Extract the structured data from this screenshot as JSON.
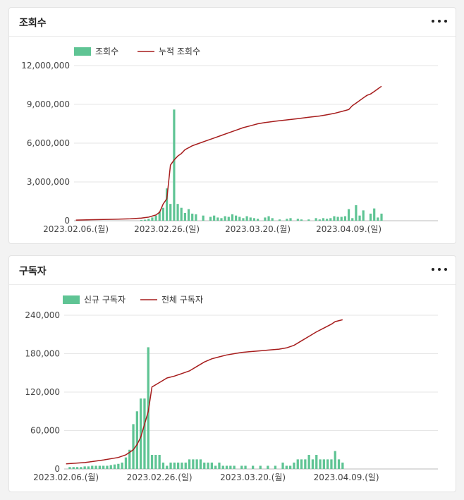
{
  "colors": {
    "bar": "#5fc494",
    "line": "#a61c1c",
    "grid": "#e6e6e6"
  },
  "cards": [
    {
      "title": "조회수"
    },
    {
      "title": "구독자"
    }
  ],
  "chart_data": [
    {
      "type": "bar",
      "x_range": [
        0,
        99
      ],
      "ylim": [
        0,
        12000000
      ],
      "yticks": [
        0,
        3000000,
        6000000,
        9000000,
        12000000
      ],
      "ytick_labels": [
        "0",
        "3,000,000",
        "6,000,000",
        "9,000,000",
        "12,000,000"
      ],
      "xticks": [
        0,
        25,
        50,
        75
      ],
      "xtick_labels": [
        "2023.02.06.(월)",
        "2023.02.26.(일)",
        "2023.03.20.(월)",
        "2023.04.09.(일)"
      ],
      "legend": "top-left",
      "grid": true,
      "series": [
        {
          "name": "조회수",
          "kind": "bar",
          "points": [
            [
              18,
              50000
            ],
            [
              19,
              80000
            ],
            [
              20,
              150000
            ],
            [
              21,
              250000
            ],
            [
              22,
              400000
            ],
            [
              23,
              700000
            ],
            [
              24,
              1000000
            ],
            [
              25,
              2500000
            ],
            [
              26,
              1300000
            ],
            [
              27,
              8600000
            ],
            [
              28,
              1300000
            ],
            [
              29,
              1000000
            ],
            [
              30,
              600000
            ],
            [
              31,
              900000
            ],
            [
              32,
              550000
            ],
            [
              33,
              500000
            ],
            [
              35,
              400000
            ],
            [
              37,
              300000
            ],
            [
              38,
              400000
            ],
            [
              39,
              250000
            ],
            [
              40,
              200000
            ],
            [
              41,
              350000
            ],
            [
              42,
              300000
            ],
            [
              43,
              500000
            ],
            [
              44,
              400000
            ],
            [
              45,
              300000
            ],
            [
              46,
              200000
            ],
            [
              47,
              350000
            ],
            [
              48,
              250000
            ],
            [
              49,
              200000
            ],
            [
              50,
              150000
            ],
            [
              52,
              250000
            ],
            [
              53,
              350000
            ],
            [
              54,
              200000
            ],
            [
              56,
              100000
            ],
            [
              58,
              150000
            ],
            [
              59,
              200000
            ],
            [
              61,
              150000
            ],
            [
              62,
              100000
            ],
            [
              64,
              100000
            ],
            [
              66,
              200000
            ],
            [
              67,
              100000
            ],
            [
              68,
              200000
            ],
            [
              69,
              150000
            ],
            [
              70,
              200000
            ],
            [
              71,
              350000
            ],
            [
              72,
              300000
            ],
            [
              73,
              300000
            ],
            [
              74,
              350000
            ],
            [
              75,
              900000
            ],
            [
              76,
              200000
            ],
            [
              77,
              1200000
            ],
            [
              78,
              400000
            ],
            [
              79,
              800000
            ],
            [
              81,
              550000
            ],
            [
              82,
              950000
            ],
            [
              83,
              250000
            ],
            [
              84,
              550000
            ]
          ]
        },
        {
          "name": "누적 조회수",
          "kind": "line",
          "points": [
            [
              0,
              50000
            ],
            [
              5,
              80000
            ],
            [
              10,
              110000
            ],
            [
              15,
              150000
            ],
            [
              18,
              200000
            ],
            [
              20,
              280000
            ],
            [
              22,
              450000
            ],
            [
              23,
              650000
            ],
            [
              24,
              1300000
            ],
            [
              25,
              1700000
            ],
            [
              26,
              4300000
            ],
            [
              27,
              4700000
            ],
            [
              28,
              5000000
            ],
            [
              29,
              5200000
            ],
            [
              30,
              5500000
            ],
            [
              32,
              5800000
            ],
            [
              34,
              6000000
            ],
            [
              36,
              6200000
            ],
            [
              38,
              6400000
            ],
            [
              40,
              6600000
            ],
            [
              42,
              6800000
            ],
            [
              44,
              7000000
            ],
            [
              46,
              7200000
            ],
            [
              48,
              7350000
            ],
            [
              50,
              7500000
            ],
            [
              52,
              7600000
            ],
            [
              55,
              7700000
            ],
            [
              58,
              7800000
            ],
            [
              61,
              7900000
            ],
            [
              64,
              8000000
            ],
            [
              67,
              8100000
            ],
            [
              69,
              8200000
            ],
            [
              71,
              8300000
            ],
            [
              73,
              8450000
            ],
            [
              75,
              8600000
            ],
            [
              76,
              8900000
            ],
            [
              77,
              9100000
            ],
            [
              78,
              9300000
            ],
            [
              79,
              9500000
            ],
            [
              80,
              9700000
            ],
            [
              81,
              9800000
            ],
            [
              82,
              10000000
            ],
            [
              83,
              10200000
            ],
            [
              84,
              10400000
            ]
          ]
        }
      ]
    },
    {
      "type": "bar",
      "x_range": [
        0,
        99
      ],
      "ylim": [
        0,
        240000
      ],
      "yticks": [
        0,
        60000,
        120000,
        180000,
        240000
      ],
      "ytick_labels": [
        "0",
        "60,000",
        "120,000",
        "180,000",
        "240,000"
      ],
      "xticks": [
        0,
        25,
        50,
        75
      ],
      "xtick_labels": [
        "2023.02.06.(월)",
        "2023.02.26.(일)",
        "2023.03.20.(월)",
        "2023.04.09.(일)"
      ],
      "legend": "top-left",
      "grid": true,
      "series": [
        {
          "name": "신규 구독자",
          "kind": "bar",
          "points": [
            [
              1,
              3000
            ],
            [
              2,
              3000
            ],
            [
              3,
              3000
            ],
            [
              4,
              3000
            ],
            [
              5,
              4000
            ],
            [
              6,
              4000
            ],
            [
              7,
              5000
            ],
            [
              8,
              5000
            ],
            [
              9,
              5000
            ],
            [
              10,
              5000
            ],
            [
              11,
              5000
            ],
            [
              12,
              6000
            ],
            [
              13,
              7000
            ],
            [
              14,
              8000
            ],
            [
              15,
              10000
            ],
            [
              16,
              18000
            ],
            [
              17,
              30000
            ],
            [
              18,
              70000
            ],
            [
              19,
              90000
            ],
            [
              20,
              110000
            ],
            [
              21,
              110000
            ],
            [
              22,
              190000
            ],
            [
              23,
              22000
            ],
            [
              24,
              22000
            ],
            [
              25,
              22000
            ],
            [
              26,
              10000
            ],
            [
              27,
              5000
            ],
            [
              28,
              10000
            ],
            [
              29,
              10000
            ],
            [
              30,
              10000
            ],
            [
              31,
              10000
            ],
            [
              32,
              10000
            ],
            [
              33,
              15000
            ],
            [
              34,
              15000
            ],
            [
              35,
              15000
            ],
            [
              36,
              15000
            ],
            [
              37,
              10000
            ],
            [
              38,
              10000
            ],
            [
              39,
              10000
            ],
            [
              40,
              5000
            ],
            [
              41,
              10000
            ],
            [
              42,
              5000
            ],
            [
              43,
              5000
            ],
            [
              44,
              5000
            ],
            [
              45,
              5000
            ],
            [
              47,
              5000
            ],
            [
              48,
              5000
            ],
            [
              50,
              5000
            ],
            [
              52,
              5000
            ],
            [
              54,
              5000
            ],
            [
              56,
              5000
            ],
            [
              58,
              10000
            ],
            [
              59,
              5000
            ],
            [
              60,
              5000
            ],
            [
              61,
              10000
            ],
            [
              62,
              15000
            ],
            [
              63,
              15000
            ],
            [
              64,
              15000
            ],
            [
              65,
              22000
            ],
            [
              66,
              15000
            ],
            [
              67,
              22000
            ],
            [
              68,
              15000
            ],
            [
              69,
              15000
            ],
            [
              70,
              15000
            ],
            [
              71,
              15000
            ],
            [
              72,
              28000
            ],
            [
              73,
              15000
            ],
            [
              74,
              10000
            ]
          ]
        },
        {
          "name": "전체 구독자",
          "kind": "line",
          "points": [
            [
              0,
              8000
            ],
            [
              5,
              10000
            ],
            [
              10,
              14000
            ],
            [
              14,
              18000
            ],
            [
              16,
              22000
            ],
            [
              18,
              30000
            ],
            [
              19,
              38000
            ],
            [
              20,
              50000
            ],
            [
              21,
              70000
            ],
            [
              22,
              90000
            ],
            [
              23,
              128000
            ],
            [
              25,
              135000
            ],
            [
              27,
              142000
            ],
            [
              29,
              145000
            ],
            [
              31,
              149000
            ],
            [
              33,
              153000
            ],
            [
              35,
              160000
            ],
            [
              37,
              167000
            ],
            [
              39,
              172000
            ],
            [
              41,
              175000
            ],
            [
              43,
              178000
            ],
            [
              45,
              180000
            ],
            [
              47,
              182000
            ],
            [
              49,
              183000
            ],
            [
              51,
              184000
            ],
            [
              53,
              185000
            ],
            [
              55,
              186000
            ],
            [
              57,
              187000
            ],
            [
              59,
              189000
            ],
            [
              61,
              193000
            ],
            [
              63,
              200000
            ],
            [
              65,
              207000
            ],
            [
              67,
              214000
            ],
            [
              69,
              220000
            ],
            [
              71,
              226000
            ],
            [
              72,
              230000
            ],
            [
              74,
              233000
            ]
          ]
        }
      ]
    }
  ]
}
